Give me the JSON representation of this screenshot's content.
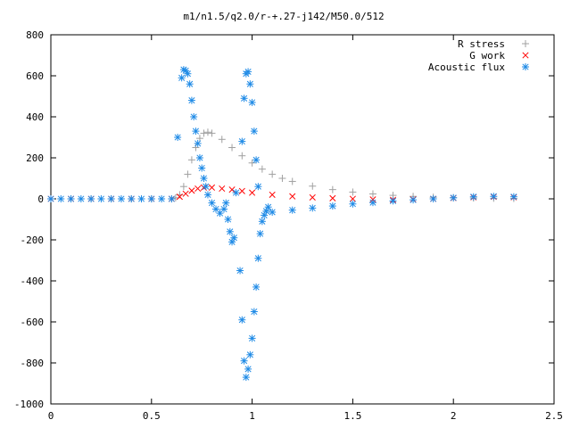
{
  "chart_data": {
    "type": "scatter",
    "title": "m1/n1.5/q2.0/r-+.27-j142/M50.0/512",
    "xlabel": "",
    "ylabel": "",
    "xlim": [
      0,
      2.5
    ],
    "ylim": [
      -1000,
      800
    ],
    "xticks": [
      0,
      0.5,
      1,
      1.5,
      2,
      2.5
    ],
    "xtick_labels": [
      "0",
      "0.5",
      "1",
      "1.5",
      "2",
      "2.5"
    ],
    "yticks": [
      -1000,
      -800,
      -600,
      -400,
      -200,
      0,
      200,
      400,
      600,
      800
    ],
    "ytick_labels": [
      "-1000",
      "-800",
      "-600",
      "-400",
      "-200",
      "0",
      "200",
      "400",
      "600",
      "800"
    ],
    "grid": false,
    "legend_position": "top-right",
    "series": [
      {
        "name": "R stress",
        "marker": "plus",
        "color": "#a0a0a0",
        "points": [
          [
            0,
            0
          ],
          [
            0.1,
            0
          ],
          [
            0.2,
            0
          ],
          [
            0.3,
            0
          ],
          [
            0.4,
            0
          ],
          [
            0.5,
            0
          ],
          [
            0.6,
            0
          ],
          [
            0.62,
            5
          ],
          [
            0.64,
            20
          ],
          [
            0.66,
            60
          ],
          [
            0.68,
            120
          ],
          [
            0.7,
            190
          ],
          [
            0.72,
            250
          ],
          [
            0.74,
            295
          ],
          [
            0.76,
            320
          ],
          [
            0.78,
            325
          ],
          [
            0.8,
            320
          ],
          [
            0.85,
            290
          ],
          [
            0.9,
            250
          ],
          [
            0.95,
            210
          ],
          [
            1.0,
            175
          ],
          [
            1.05,
            145
          ],
          [
            1.1,
            120
          ],
          [
            1.15,
            100
          ],
          [
            1.2,
            85
          ],
          [
            1.3,
            62
          ],
          [
            1.4,
            45
          ],
          [
            1.5,
            33
          ],
          [
            1.6,
            24
          ],
          [
            1.7,
            17
          ],
          [
            1.8,
            12
          ],
          [
            1.9,
            8
          ],
          [
            2.0,
            6
          ],
          [
            2.1,
            4
          ],
          [
            2.2,
            3
          ],
          [
            2.3,
            2
          ]
        ]
      },
      {
        "name": "G work",
        "marker": "cross",
        "color": "#ff0000",
        "points": [
          [
            0,
            0
          ],
          [
            0.1,
            0
          ],
          [
            0.2,
            0
          ],
          [
            0.3,
            0
          ],
          [
            0.4,
            0
          ],
          [
            0.5,
            0
          ],
          [
            0.6,
            0
          ],
          [
            0.64,
            10
          ],
          [
            0.67,
            25
          ],
          [
            0.7,
            40
          ],
          [
            0.73,
            50
          ],
          [
            0.76,
            55
          ],
          [
            0.8,
            55
          ],
          [
            0.85,
            50
          ],
          [
            0.9,
            45
          ],
          [
            0.95,
            38
          ],
          [
            1.0,
            30
          ],
          [
            1.1,
            20
          ],
          [
            1.2,
            12
          ],
          [
            1.3,
            7
          ],
          [
            1.4,
            3
          ],
          [
            1.5,
            0
          ],
          [
            1.6,
            -3
          ],
          [
            1.7,
            -5
          ],
          [
            1.8,
            -3
          ],
          [
            1.9,
            0
          ],
          [
            2.0,
            4
          ],
          [
            2.1,
            8
          ],
          [
            2.2,
            10
          ],
          [
            2.3,
            8
          ]
        ]
      },
      {
        "name": "Acoustic flux",
        "marker": "star",
        "color": "#1e8ae6",
        "points": [
          [
            0,
            0
          ],
          [
            0.05,
            0
          ],
          [
            0.1,
            0
          ],
          [
            0.15,
            0
          ],
          [
            0.2,
            0
          ],
          [
            0.25,
            0
          ],
          [
            0.3,
            0
          ],
          [
            0.35,
            0
          ],
          [
            0.4,
            0
          ],
          [
            0.45,
            0
          ],
          [
            0.5,
            0
          ],
          [
            0.55,
            0
          ],
          [
            0.6,
            0
          ],
          [
            0.63,
            300
          ],
          [
            0.65,
            590
          ],
          [
            0.66,
            630
          ],
          [
            0.67,
            625
          ],
          [
            0.68,
            610
          ],
          [
            0.69,
            560
          ],
          [
            0.7,
            480
          ],
          [
            0.71,
            400
          ],
          [
            0.72,
            330
          ],
          [
            0.73,
            270
          ],
          [
            0.74,
            200
          ],
          [
            0.75,
            150
          ],
          [
            0.76,
            100
          ],
          [
            0.77,
            60
          ],
          [
            0.78,
            20
          ],
          [
            0.8,
            -20
          ],
          [
            0.82,
            -50
          ],
          [
            0.84,
            -70
          ],
          [
            0.86,
            -50
          ],
          [
            0.87,
            -20
          ],
          [
            0.88,
            -100
          ],
          [
            0.89,
            -160
          ],
          [
            0.9,
            -210
          ],
          [
            0.91,
            -190
          ],
          [
            0.92,
            30
          ],
          [
            0.94,
            -350
          ],
          [
            0.95,
            -590
          ],
          [
            0.96,
            -790
          ],
          [
            0.97,
            -870
          ],
          [
            0.98,
            -830
          ],
          [
            0.99,
            -760
          ],
          [
            1.0,
            -680
          ],
          [
            1.01,
            -550
          ],
          [
            1.02,
            -430
          ],
          [
            1.03,
            -290
          ],
          [
            1.04,
            -170
          ],
          [
            1.05,
            -110
          ],
          [
            1.06,
            -80
          ],
          [
            1.07,
            -60
          ],
          [
            1.08,
            -40
          ],
          [
            0.95,
            280
          ],
          [
            0.96,
            490
          ],
          [
            0.97,
            610
          ],
          [
            0.98,
            620
          ],
          [
            0.99,
            560
          ],
          [
            1.0,
            470
          ],
          [
            1.01,
            330
          ],
          [
            1.02,
            190
          ],
          [
            1.03,
            60
          ],
          [
            1.1,
            -65
          ],
          [
            1.2,
            -55
          ],
          [
            1.3,
            -45
          ],
          [
            1.4,
            -35
          ],
          [
            1.5,
            -25
          ],
          [
            1.6,
            -18
          ],
          [
            1.7,
            -10
          ],
          [
            1.8,
            -5
          ],
          [
            1.9,
            0
          ],
          [
            2.0,
            5
          ],
          [
            2.1,
            10
          ],
          [
            2.2,
            12
          ],
          [
            2.3,
            10
          ]
        ]
      }
    ]
  }
}
